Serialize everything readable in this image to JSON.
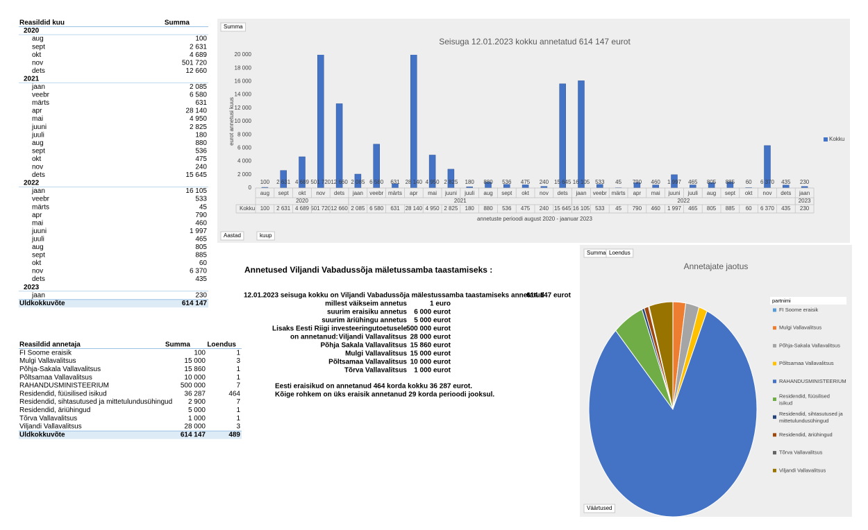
{
  "months_table": {
    "header": [
      "Reasildid kuu",
      "Summa"
    ],
    "years": [
      {
        "year": "2020",
        "rows": [
          [
            "aug",
            "100"
          ],
          [
            "sept",
            "2 631"
          ],
          [
            "okt",
            "4 689"
          ],
          [
            "nov",
            "501 720"
          ],
          [
            "dets",
            "12 660"
          ]
        ]
      },
      {
        "year": "2021",
        "rows": [
          [
            "jaan",
            "2 085"
          ],
          [
            "veebr",
            "6 580"
          ],
          [
            "märts",
            "631"
          ],
          [
            "apr",
            "28 140"
          ],
          [
            "mai",
            "4 950"
          ],
          [
            "juuni",
            "2 825"
          ],
          [
            "juuli",
            "180"
          ],
          [
            "aug",
            "880"
          ],
          [
            "sept",
            "536"
          ],
          [
            "okt",
            "475"
          ],
          [
            "nov",
            "240"
          ],
          [
            "dets",
            "15 645"
          ]
        ]
      },
      {
        "year": "2022",
        "rows": [
          [
            "jaan",
            "16 105"
          ],
          [
            "veebr",
            "533"
          ],
          [
            "märts",
            "45"
          ],
          [
            "apr",
            "790"
          ],
          [
            "mai",
            "460"
          ],
          [
            "juuni",
            "1 997"
          ],
          [
            "juuli",
            "465"
          ],
          [
            "aug",
            "805"
          ],
          [
            "sept",
            "885"
          ],
          [
            "okt",
            "60"
          ],
          [
            "nov",
            "6 370"
          ],
          [
            "dets",
            "435"
          ]
        ]
      },
      {
        "year": "2023",
        "rows": [
          [
            "jaan",
            "230"
          ]
        ]
      }
    ],
    "total": [
      "Uldkokkuvõte",
      "614 147"
    ]
  },
  "donor_table": {
    "header": [
      "Reasildid annetaja",
      "Summa",
      "Loendus"
    ],
    "rows": [
      [
        "FI Soome eraisik",
        "100",
        "1"
      ],
      [
        "Mulgi Vallavalitsus",
        "15 000",
        "3"
      ],
      [
        "Põhja-Sakala Vallavalitsus",
        "15 860",
        "1"
      ],
      [
        "Põltsamaa Vallavalitsus",
        "10 000",
        "1"
      ],
      [
        "RAHANDUSMINISTEERIUM",
        "500 000",
        "7"
      ],
      [
        "Residendid, füüsilised isikud",
        "36 287",
        "464"
      ],
      [
        "Residendid, sihtasutused ja mittetulundusühingud",
        "2 900",
        "7"
      ],
      [
        "Residendid, äriühingud",
        "5 000",
        "1"
      ],
      [
        "Tõrva Vallavalitsus",
        "1 000",
        "1"
      ],
      [
        "Viljandi Vallavalitsus",
        "28 000",
        "3"
      ]
    ],
    "total": [
      "Uldkokkuvõte",
      "614 147",
      "489"
    ]
  },
  "summary": {
    "title": "Annetused Viljandi Vabadussõja mäletussamba taastamiseks :",
    "intro": "12.01.2023 seisuga kokku on Viljandi Vabadussõja mälestussamba taastamiseks annetatud",
    "intro_value": "614 147 eurot",
    "lines": [
      {
        "label": "millest väikseim annetus",
        "value": "1 euro"
      },
      {
        "label": "suurim eraisiku annetus",
        "value": "6 000 eurot"
      },
      {
        "label": "suurim äriühingu annetus",
        "value": "5 000 eurot"
      },
      {
        "label": "Lisaks Eesti Riigi investeeringutoetusele",
        "value": "500 000 eurot"
      },
      {
        "prefix": "on annetanud:",
        "label": "Viljandi Vallavalitsus",
        "value": "28 000 eurot"
      },
      {
        "label": "Põhja Sakala Vallavalitsus",
        "value": "15 860 eurot"
      },
      {
        "label": "Mulgi Vallavalitsus",
        "value": "15 000 eurot"
      },
      {
        "label": "Põltsamaa Vallavalitsus",
        "value": "10 000 eurot"
      },
      {
        "label": "Tõrva Vallavalitsus",
        "value": "1 000 eurot"
      }
    ],
    "notes": [
      "Eesti eraisikud on annetanud 464 korda kokku 36 287 eurot.",
      "Kõige rohkem on üks eraisik annetanud 29 korda perioodi jooksul."
    ]
  },
  "chart_data": [
    {
      "type": "bar",
      "title": "Seisuga 12.01.2023 kokku annetatud 614 147 eurot",
      "ylabel": "eurot annetusi kuus",
      "xlabel": "annetuste perioodi august 2020 - jaanuar 2023",
      "value_button": "Summa",
      "axis_buttons": [
        "Aastad",
        "kuup"
      ],
      "categories": [
        "aug",
        "sept",
        "okt",
        "nov",
        "dets",
        "jaan",
        "veebr",
        "märts",
        "apr",
        "mai",
        "juuni",
        "juuli",
        "aug",
        "sept",
        "okt",
        "nov",
        "dets",
        "jaan",
        "veebr",
        "märts",
        "apr",
        "mai",
        "juuni",
        "juuli",
        "aug",
        "sept",
        "okt",
        "nov",
        "dets",
        "jaan"
      ],
      "category_years": [
        "2020",
        "2020",
        "2020",
        "2020",
        "2020",
        "2021",
        "2021",
        "2021",
        "2021",
        "2021",
        "2021",
        "2021",
        "2021",
        "2021",
        "2021",
        "2021",
        "2021",
        "2022",
        "2022",
        "2022",
        "2022",
        "2022",
        "2022",
        "2022",
        "2022",
        "2022",
        "2022",
        "2022",
        "2022",
        "2023"
      ],
      "series": [
        {
          "name": "Kokku",
          "color": "#4472c4",
          "values": [
            100,
            2631,
            4689,
            501720,
            12660,
            2085,
            6580,
            631,
            28140,
            4950,
            2825,
            180,
            880,
            536,
            475,
            240,
            15645,
            16105,
            533,
            45,
            790,
            460,
            1997,
            465,
            805,
            885,
            60,
            6370,
            435,
            230
          ],
          "value_labels": [
            "100",
            "2 631",
            "4 689",
            "501 720",
            "12 660",
            "2 085",
            "6 580",
            "631",
            "28 140",
            "4 950",
            "2 825",
            "180",
            "880",
            "536",
            "475",
            "240",
            "15 645",
            "16 105",
            "533",
            "45",
            "790",
            "460",
            "1 997",
            "465",
            "805",
            "885",
            "60",
            "6 370",
            "435",
            "230"
          ]
        }
      ],
      "ylim": [
        0,
        20000
      ],
      "yticks": [
        0,
        {
          "value": 2000,
          "label": "2 000"
        },
        {
          "value": 4000,
          "label": "4 000"
        },
        {
          "value": 6000,
          "label": "6 000"
        },
        {
          "value": 8000,
          "label": "8 000"
        },
        {
          "value": 10000,
          "label": "10 000"
        },
        {
          "value": 12000,
          "label": "12 000"
        },
        {
          "value": 14000,
          "label": "14 000"
        },
        {
          "value": 16000,
          "label": "16 000"
        },
        {
          "value": 18000,
          "label": "18 000"
        },
        {
          "value": 20000,
          "label": "20 000"
        }
      ],
      "grid": false,
      "legend": "right"
    },
    {
      "type": "pie",
      "title": "Annetajate jaotus",
      "value_buttons": [
        "Summa",
        "Loendus"
      ],
      "legend_title": "partnimi",
      "values_button": "Väärtused",
      "categories": [
        "FI Soome eraisik",
        "Mulgi Vallavalitsus",
        "Põhja-Sakala Vallavalitsus",
        "Põltsamaa Vallavalitsus",
        "RAHANDUSMINISTEERIUM",
        "Residendid, füüsilised isikud",
        "Residendid, sihtasutused ja mittetulundusühingud",
        "Residendid, äriühingud",
        "Tõrva Vallavalitsus",
        "Viljandi Vallavalitsus"
      ],
      "values": [
        100,
        15000,
        15860,
        10000,
        500000,
        36287,
        2900,
        5000,
        1000,
        28000
      ],
      "colors": [
        "#5b9bd5",
        "#ed7d31",
        "#a5a5a5",
        "#ffc000",
        "#4472c4",
        "#70ad47",
        "#264478",
        "#9e480e",
        "#636363",
        "#997300"
      ],
      "legend": "right"
    }
  ]
}
